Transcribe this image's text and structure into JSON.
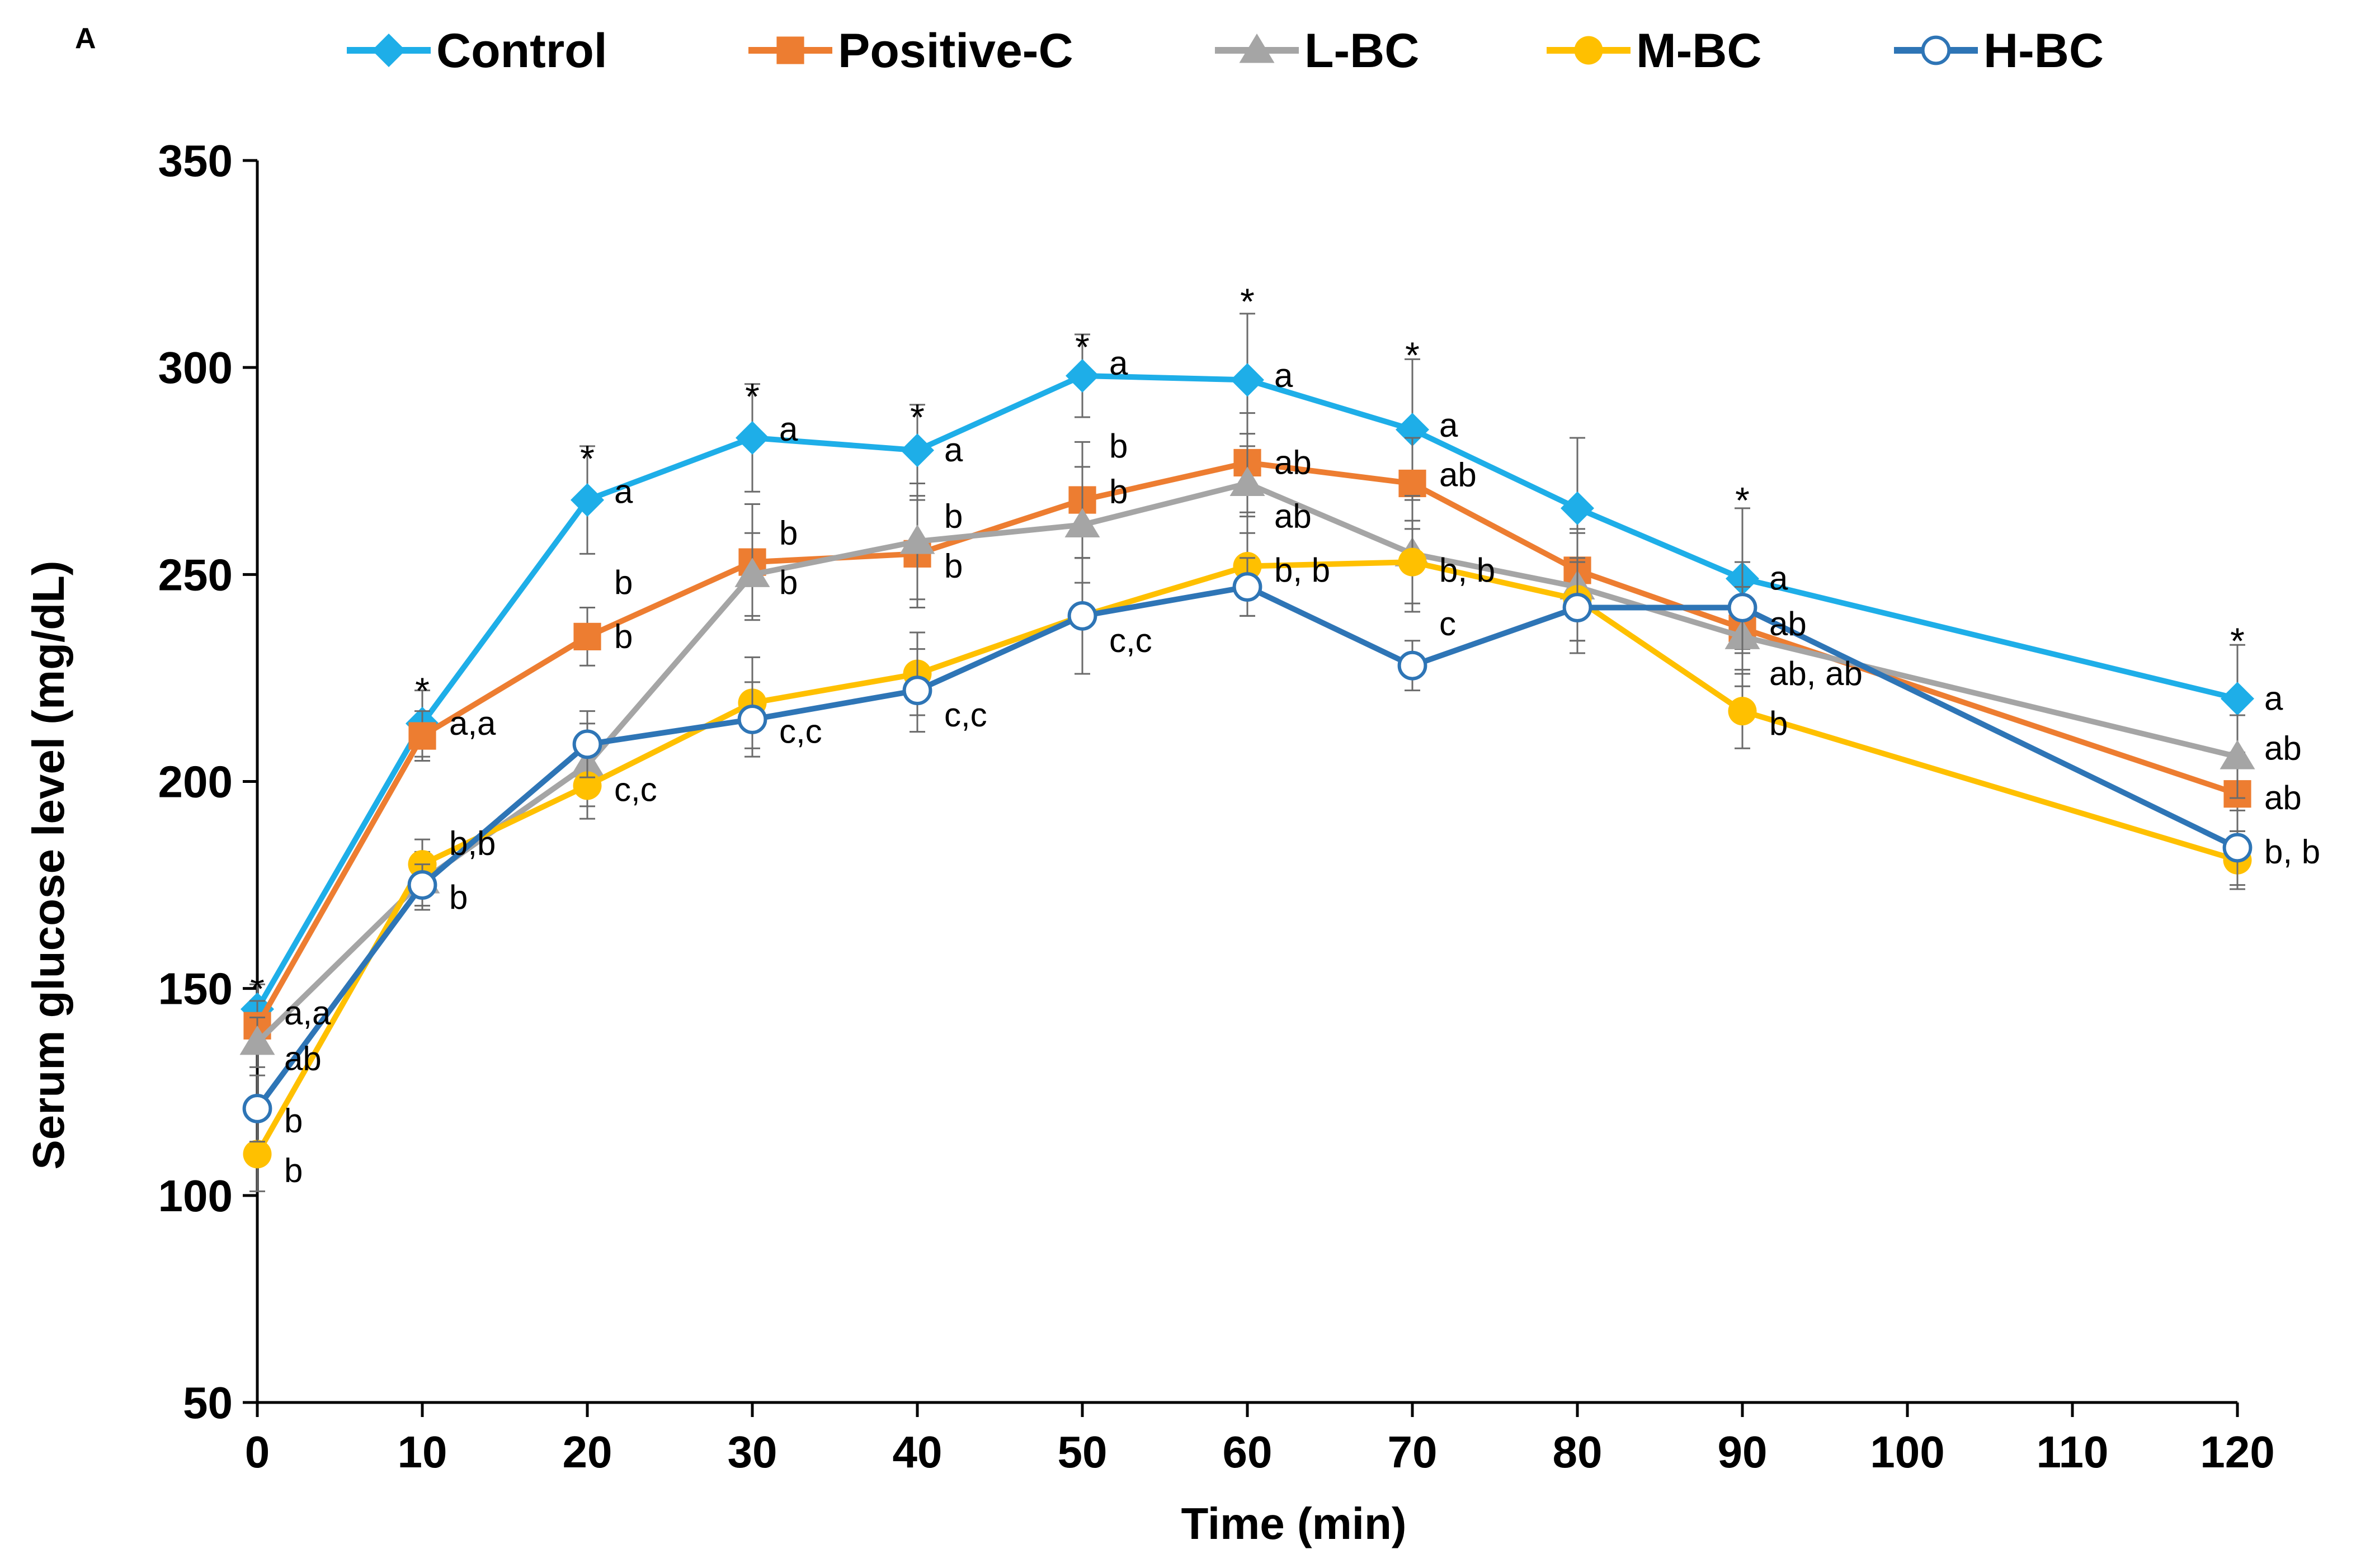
{
  "chart_data": {
    "type": "line",
    "panel_label": "A",
    "title": "",
    "xlabel": "Time (min)",
    "ylabel": "Serum glucose level (mg/dL)",
    "xlim": [
      0,
      120
    ],
    "ylim": [
      50,
      350
    ],
    "xticks": [
      0,
      10,
      20,
      30,
      40,
      50,
      60,
      70,
      80,
      90,
      100,
      110,
      120
    ],
    "yticks": [
      50,
      100,
      150,
      200,
      250,
      300,
      350
    ],
    "grid": false,
    "legend_position": "top",
    "x": [
      0,
      10,
      20,
      30,
      40,
      50,
      60,
      70,
      80,
      90,
      120
    ],
    "series": [
      {
        "name": "Control",
        "color": "#1eaee8",
        "marker": "diamond",
        "values": [
          145,
          214,
          268,
          283,
          280,
          298,
          297,
          285,
          266,
          249,
          220
        ],
        "errors": [
          6,
          8,
          13,
          13,
          11,
          10,
          16,
          17,
          17,
          17,
          13
        ]
      },
      {
        "name": "Positive-C",
        "color": "#ed7d31",
        "marker": "square",
        "values": [
          141,
          211,
          235,
          253,
          255,
          268,
          277,
          272,
          251,
          237,
          197
        ],
        "errors": [
          6,
          6,
          7,
          14,
          13,
          14,
          12,
          11,
          10,
          10,
          9
        ]
      },
      {
        "name": "L-BC",
        "color": "#a5a5a5",
        "marker": "triangle",
        "values": [
          137,
          176,
          204,
          250,
          258,
          262,
          272,
          255,
          247,
          235,
          206
        ],
        "errors": [
          6,
          7,
          10,
          10,
          14,
          14,
          12,
          14,
          13,
          12,
          10
        ]
      },
      {
        "name": "M-BC",
        "color": "#ffc000",
        "marker": "circle",
        "values": [
          110,
          180,
          199,
          219,
          226,
          240,
          252,
          253,
          244,
          217,
          181
        ],
        "errors": [
          9,
          6,
          8,
          11,
          10,
          14,
          12,
          10,
          10,
          9,
          7
        ]
      },
      {
        "name": "H-BC",
        "color": "#2e75b6",
        "marker": "open-circle",
        "values": [
          121,
          175,
          209,
          215,
          222,
          240,
          247,
          228,
          242,
          242,
          184
        ],
        "errors": [
          8,
          5,
          8,
          9,
          10,
          14,
          7,
          6,
          11,
          11,
          9
        ]
      }
    ],
    "annotations": [
      {
        "x": 0,
        "y": 152,
        "text": "*"
      },
      {
        "x": 0,
        "y": 144,
        "text": "a,a"
      },
      {
        "x": 0,
        "y": 133,
        "text": "ab"
      },
      {
        "x": 0,
        "y": 118,
        "text": "b"
      },
      {
        "x": 0,
        "y": 106,
        "text": "b"
      },
      {
        "x": 10,
        "y": 224,
        "text": "*"
      },
      {
        "x": 10,
        "y": 214,
        "text": "a,a"
      },
      {
        "x": 10,
        "y": 185,
        "text": "b,b"
      },
      {
        "x": 10,
        "y": 172,
        "text": "b"
      },
      {
        "x": 20,
        "y": 280,
        "text": "*"
      },
      {
        "x": 20,
        "y": 270,
        "text": "a"
      },
      {
        "x": 20,
        "y": 248,
        "text": "b"
      },
      {
        "x": 20,
        "y": 235,
        "text": "b"
      },
      {
        "x": 20,
        "y": 198,
        "text": "c,c"
      },
      {
        "x": 30,
        "y": 295,
        "text": "*"
      },
      {
        "x": 30,
        "y": 285,
        "text": "a"
      },
      {
        "x": 30,
        "y": 260,
        "text": "b"
      },
      {
        "x": 30,
        "y": 248,
        "text": "b"
      },
      {
        "x": 30,
        "y": 212,
        "text": "c,c"
      },
      {
        "x": 40,
        "y": 290,
        "text": "*"
      },
      {
        "x": 40,
        "y": 280,
        "text": "a"
      },
      {
        "x": 40,
        "y": 264,
        "text": "b"
      },
      {
        "x": 40,
        "y": 252,
        "text": "b"
      },
      {
        "x": 40,
        "y": 216,
        "text": "c,c"
      },
      {
        "x": 50,
        "y": 307,
        "text": "*"
      },
      {
        "x": 50,
        "y": 301,
        "text": "a"
      },
      {
        "x": 50,
        "y": 281,
        "text": "b"
      },
      {
        "x": 50,
        "y": 270,
        "text": "b"
      },
      {
        "x": 50,
        "y": 234,
        "text": "c,c"
      },
      {
        "x": 60,
        "y": 318,
        "text": "*"
      },
      {
        "x": 60,
        "y": 298,
        "text": "a"
      },
      {
        "x": 60,
        "y": 277,
        "text": "ab"
      },
      {
        "x": 60,
        "y": 264,
        "text": "ab"
      },
      {
        "x": 60,
        "y": 251,
        "text": "b, b"
      },
      {
        "x": 70,
        "y": 305,
        "text": "*"
      },
      {
        "x": 70,
        "y": 286,
        "text": "a"
      },
      {
        "x": 70,
        "y": 274,
        "text": "ab"
      },
      {
        "x": 70,
        "y": 251,
        "text": "b, b"
      },
      {
        "x": 70,
        "y": 238,
        "text": "c"
      },
      {
        "x": 90,
        "y": 270,
        "text": "*"
      },
      {
        "x": 90,
        "y": 249,
        "text": "a"
      },
      {
        "x": 90,
        "y": 238,
        "text": "ab"
      },
      {
        "x": 90,
        "y": 226,
        "text": "ab, ab"
      },
      {
        "x": 90,
        "y": 214,
        "text": "b"
      },
      {
        "x": 120,
        "y": 236,
        "text": "*"
      },
      {
        "x": 120,
        "y": 220,
        "text": "a"
      },
      {
        "x": 120,
        "y": 208,
        "text": "ab"
      },
      {
        "x": 120,
        "y": 196,
        "text": "ab"
      },
      {
        "x": 120,
        "y": 183,
        "text": "b, b"
      }
    ]
  }
}
